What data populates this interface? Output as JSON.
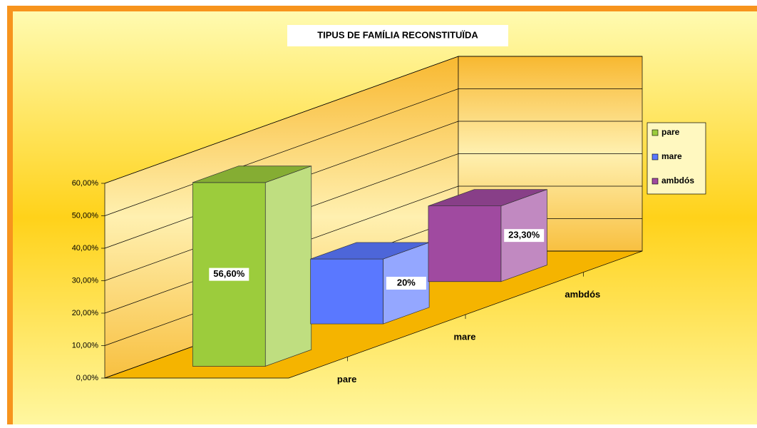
{
  "chart_data": {
    "type": "bar3d",
    "title": "TIPUS DE FAMÍLIA RECONSTITUÏDA",
    "categories": [
      "pare",
      "mare",
      "ambdós"
    ],
    "values": [
      56.6,
      20,
      23.3
    ],
    "value_labels": [
      "56,60%",
      "20%",
      "23,30%"
    ],
    "colors": [
      "#9ccc3c",
      "#5a78ff",
      "#a04aa0"
    ],
    "ylim": [
      0,
      60
    ],
    "yticks": [
      {
        "value": 0,
        "label": "0,00%"
      },
      {
        "value": 10,
        "label": "10,00%"
      },
      {
        "value": 20,
        "label": "20,00%"
      },
      {
        "value": 30,
        "label": "30,00%"
      },
      {
        "value": 40,
        "label": "40,00%"
      },
      {
        "value": 50,
        "label": "50,00%"
      },
      {
        "value": 60,
        "label": "60,00%"
      }
    ],
    "grid": true,
    "legend": "right"
  }
}
